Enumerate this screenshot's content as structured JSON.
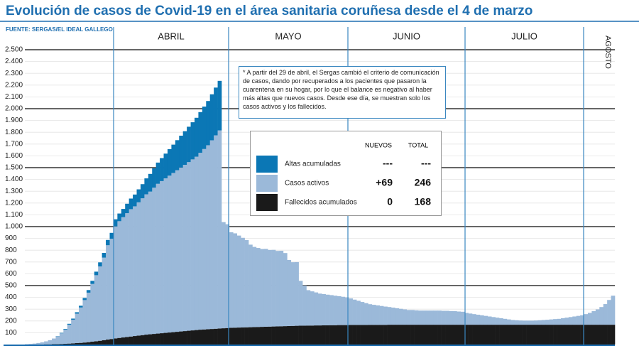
{
  "chart_data": {
    "type": "stacked-bar",
    "title": "Evolución de casos de Covid-19 en el área sanitaria coruñesa desde el 4 de marzo",
    "source": "FUENTE: SERGAS/EL IDEAL GALLEGO",
    "months": [
      "ABRIL",
      "MAYO",
      "JUNIO",
      "JULIO",
      "AGOSTO"
    ],
    "note": "* A partir del 29 de abril, el Sergas cambió el criterio de comunicación de casos, dando por recuperados a los pacientes que pasaron la cuarentena en su hogar, por lo que el balance es negativo al haber más altas que nuevos casos. Desde ese día, se muestran solo los casos activos y los fallecidos.",
    "ylim": [
      0,
      2500
    ],
    "yticks": [
      100,
      200,
      300,
      400,
      500,
      600,
      700,
      800,
      900,
      {
        "value": 1000,
        "label": "1.000"
      },
      {
        "value": 1100,
        "label": "1.100"
      },
      {
        "value": 1200,
        "label": "1.200"
      },
      {
        "value": 1300,
        "label": "1.300"
      },
      {
        "value": 1400,
        "label": "1.400"
      },
      {
        "value": 1500,
        "label": "1.500"
      },
      {
        "value": 1600,
        "label": "1.600"
      },
      {
        "value": 1700,
        "label": "1.700"
      },
      {
        "value": 1800,
        "label": "1.800"
      },
      {
        "value": 1900,
        "label": "1.900"
      },
      {
        "value": 2000,
        "label": "2.000"
      },
      {
        "value": 2100,
        "label": "2.100"
      },
      {
        "value": 2200,
        "label": "2.200"
      },
      {
        "value": 2300,
        "label": "2.300"
      },
      {
        "value": 2400,
        "label": "2.400"
      },
      {
        "value": 2500,
        "label": "2.500"
      }
    ],
    "series": [
      {
        "name": "Fallecidos acumulados",
        "color": "#1a1a1a",
        "values": [
          0,
          0,
          0,
          1,
          1,
          2,
          2,
          3,
          4,
          5,
          6,
          8,
          10,
          12,
          14,
          17,
          20,
          24,
          28,
          32,
          37,
          42,
          47,
          52,
          56,
          60,
          64,
          68,
          72,
          76,
          80,
          84,
          87,
          90,
          93,
          96,
          99,
          102,
          105,
          108,
          111,
          114,
          117,
          120,
          123,
          126,
          128,
          130,
          132,
          134,
          136,
          138,
          140,
          142,
          143,
          144,
          145,
          146,
          147,
          148,
          149,
          150,
          151,
          152,
          153,
          154,
          155,
          156,
          157,
          158,
          159,
          160,
          160,
          161,
          161,
          162,
          162,
          163,
          163,
          164,
          164,
          165,
          165,
          165,
          166,
          166,
          166,
          166,
          166,
          167,
          167,
          167,
          167,
          167,
          168,
          168,
          168,
          168,
          168,
          168,
          168,
          168,
          168,
          168,
          168,
          168,
          168,
          168,
          168,
          168,
          168,
          168,
          168,
          168,
          168,
          168,
          168,
          168,
          168,
          168,
          168,
          168,
          168,
          168,
          168,
          168,
          168,
          168,
          168,
          168,
          168,
          168,
          168,
          168,
          168,
          168,
          168,
          168,
          168,
          168,
          168,
          168,
          168,
          168,
          168,
          168,
          168,
          168,
          168,
          168,
          168,
          168,
          168
        ]
      },
      {
        "name": "Casos activos",
        "color": "#9bb9d9",
        "values": [
          3,
          5,
          8,
          12,
          18,
          25,
          35,
          48,
          65,
          90,
          120,
          160,
          200,
          250,
          300,
          360,
          420,
          490,
          560,
          630,
          700,
          800,
          850,
          950,
          990,
          1020,
          1050,
          1080,
          1100,
          1130,
          1160,
          1190,
          1210,
          1240,
          1270,
          1290,
          1310,
          1330,
          1350,
          1370,
          1390,
          1410,
          1430,
          1450,
          1470,
          1500,
          1530,
          1560,
          1600,
          1640,
          1680,
          900,
          880,
          810,
          800,
          780,
          760,
          740,
          700,
          680,
          670,
          660,
          660,
          650,
          650,
          640,
          640,
          620,
          560,
          540,
          540,
          380,
          340,
          300,
          290,
          280,
          270,
          265,
          260,
          255,
          250,
          245,
          240,
          235,
          225,
          215,
          205,
          195,
          185,
          175,
          170,
          165,
          160,
          155,
          150,
          145,
          140,
          135,
          130,
          125,
          125,
          122,
          120,
          120,
          120,
          120,
          120,
          120,
          118,
          118,
          116,
          115,
          112,
          110,
          100,
          95,
          90,
          85,
          80,
          75,
          70,
          65,
          60,
          55,
          50,
          45,
          40,
          38,
          36,
          35,
          35,
          35,
          36,
          38,
          40,
          42,
          45,
          48,
          50,
          55,
          60,
          65,
          70,
          75,
          80,
          90,
          100,
          115,
          130,
          150,
          175,
          210,
          246
        ]
      },
      {
        "name": "Altas acumuladas",
        "color": "#0b77b5",
        "values": [
          0,
          0,
          0,
          0,
          0,
          0,
          0,
          0,
          2,
          4,
          6,
          8,
          10,
          12,
          15,
          18,
          22,
          26,
          30,
          35,
          40,
          45,
          50,
          60,
          65,
          70,
          80,
          90,
          100,
          110,
          120,
          135,
          150,
          165,
          180,
          195,
          210,
          225,
          240,
          255,
          270,
          285,
          300,
          315,
          330,
          345,
          360,
          375,
          390,
          405,
          420,
          null,
          null,
          null,
          null,
          null,
          null,
          null,
          null,
          null,
          null,
          null,
          null,
          null,
          null,
          null,
          null,
          null,
          null,
          null,
          null,
          null,
          null,
          null,
          null,
          null,
          null,
          null,
          null,
          null,
          null,
          null,
          null,
          null,
          null,
          null,
          null,
          null,
          null,
          null,
          null,
          null,
          null,
          null,
          null,
          null,
          null,
          null,
          null,
          null,
          null,
          null,
          null,
          null,
          null,
          null,
          null,
          null,
          null,
          null,
          null,
          null,
          null,
          null,
          null,
          null,
          null,
          null,
          null,
          null,
          null,
          null,
          null,
          null,
          null,
          null,
          null,
          null,
          null,
          null,
          null,
          null,
          null,
          null,
          null,
          null,
          null,
          null,
          null,
          null,
          null,
          null,
          null,
          null,
          null,
          null,
          null,
          null,
          null,
          null,
          null,
          null,
          null
        ]
      }
    ],
    "legend_table": {
      "columns": [
        "NUEVOS",
        "TOTAL"
      ],
      "rows": [
        [
          "---",
          "---"
        ],
        [
          "+69",
          "246"
        ],
        [
          "0",
          "168"
        ]
      ]
    }
  }
}
